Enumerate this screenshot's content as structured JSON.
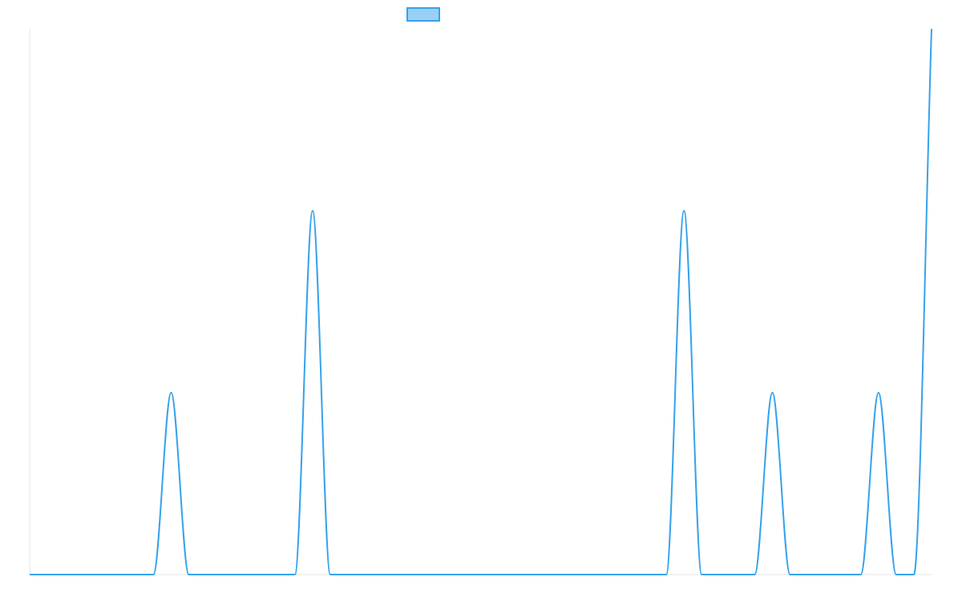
{
  "chart_data": {
    "type": "line",
    "title": "",
    "xlabel": "",
    "ylabel": "",
    "legend": {
      "placement": "top-center",
      "label": ""
    },
    "colors": {
      "line": "#36a2eb",
      "legend_fill": "#9ad0f5",
      "axis": "#e6e6e6",
      "background": "#ffffff"
    },
    "grid": false,
    "xlim": [
      0,
      51
    ],
    "ylim": [
      0,
      3
    ],
    "series": [
      {
        "values": [
          0,
          0,
          0,
          0,
          0,
          0,
          0,
          0,
          1,
          0,
          0,
          0,
          0,
          0,
          0,
          0,
          2,
          0,
          0,
          0,
          0,
          0,
          0,
          0,
          0,
          0,
          0,
          0,
          0,
          0,
          0,
          0,
          0,
          0,
          0,
          0,
          0,
          2,
          0,
          0,
          0,
          0,
          1,
          0,
          0,
          0,
          0,
          0,
          1,
          0,
          0,
          3
        ]
      }
    ]
  }
}
